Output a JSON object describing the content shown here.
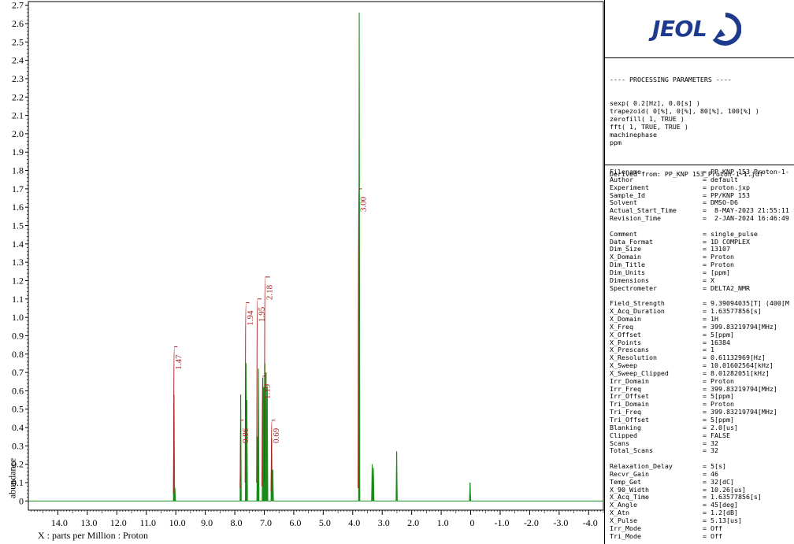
{
  "chart_data": {
    "type": "line",
    "title": "",
    "xlabel": "X : parts per Million : Proton",
    "ylabel": "abundance",
    "xlim": [
      15.0,
      -4.5
    ],
    "ylim": [
      -0.05,
      2.72
    ],
    "x_reversed": true,
    "x_ticks": [
      "14.0",
      "13.0",
      "12.0",
      "11.0",
      "10.0",
      "9.0",
      "8.0",
      "7.0",
      "6.0",
      "5.0",
      "4.0",
      "3.0",
      "2.0",
      "1.0",
      "0",
      "-1.0",
      "-2.0",
      "-3.0",
      "-4.0"
    ],
    "x_tick_values": [
      14,
      13,
      12,
      11,
      10,
      9,
      8,
      7,
      6,
      5,
      4,
      3,
      2,
      1,
      0,
      -1,
      -2,
      -3,
      -4
    ],
    "y_ticks": [
      "0",
      "0.1",
      "0.2",
      "0.3",
      "0.4",
      "0.5",
      "0.6",
      "0.7",
      "0.8",
      "0.9",
      "1.0",
      "1.1",
      "1.2",
      "1.3",
      "1.4",
      "1.5",
      "1.6",
      "1.7",
      "1.8",
      "1.9",
      "2.0",
      "2.1",
      "2.2",
      "2.3",
      "2.4",
      "2.5",
      "2.6",
      "2.7"
    ],
    "y_tick_values": [
      0,
      0.1,
      0.2,
      0.3,
      0.4,
      0.5,
      0.6,
      0.7,
      0.8,
      0.9,
      1.0,
      1.1,
      1.2,
      1.3,
      1.4,
      1.5,
      1.6,
      1.7,
      1.8,
      1.9,
      2.0,
      2.1,
      2.2,
      2.3,
      2.4,
      2.5,
      2.6,
      2.7
    ],
    "spectrum_color": "#1a8a1a",
    "integral_color": "#a82020",
    "peaks": [
      {
        "ppm": 10.06,
        "height": 0.58
      },
      {
        "ppm": 10.03,
        "height": 0.07
      },
      {
        "ppm": 7.8,
        "height": 0.58
      },
      {
        "ppm": 7.62,
        "height": 0.75
      },
      {
        "ppm": 7.59,
        "height": 0.55
      },
      {
        "ppm": 7.23,
        "height": 0.35
      },
      {
        "ppm": 7.2,
        "height": 0.72
      },
      {
        "ppm": 7.05,
        "height": 0.67
      },
      {
        "ppm": 7.02,
        "height": 0.62
      },
      {
        "ppm": 6.98,
        "height": 0.75
      },
      {
        "ppm": 6.94,
        "height": 0.7
      },
      {
        "ppm": 6.9,
        "height": 0.62
      },
      {
        "ppm": 6.75,
        "height": 0.34
      },
      {
        "ppm": 6.71,
        "height": 0.17
      },
      {
        "ppm": 3.78,
        "height": 2.66
      },
      {
        "ppm": 3.34,
        "height": 0.2
      },
      {
        "ppm": 3.3,
        "height": 0.18
      },
      {
        "ppm": 2.51,
        "height": 0.27
      },
      {
        "ppm": 0.02,
        "height": 0.1
      }
    ],
    "integrals": [
      {
        "label": "1.47",
        "start": 10.08,
        "end": 10.0,
        "top": 0.84,
        "bottom": 0.04
      },
      {
        "label": "0.86",
        "start": 7.82,
        "end": 7.76,
        "top": 0.44,
        "bottom": 0.07
      },
      {
        "label": "1.94",
        "start": 7.65,
        "end": 7.56,
        "top": 1.08,
        "bottom": 0.1
      },
      {
        "label": "1.95",
        "start": 7.26,
        "end": 7.15,
        "top": 1.1,
        "bottom": 0.1
      },
      {
        "label": "1.19",
        "start": 7.08,
        "end": 7.0,
        "top": 0.68,
        "bottom": 0.08
      },
      {
        "label": "2.18",
        "start": 7.0,
        "end": 6.86,
        "top": 1.22,
        "bottom": 0.1
      },
      {
        "label": "0.69",
        "start": 6.77,
        "end": 6.68,
        "top": 0.44,
        "bottom": 0.05
      },
      {
        "label": "3.00",
        "start": 3.82,
        "end": 3.74,
        "top": 1.7,
        "bottom": 0.07
      }
    ]
  },
  "logo": {
    "text": "JEOL"
  },
  "processing": {
    "header": "---- PROCESSING PARAMETERS ----",
    "lines": [
      "sexp( 0.2[Hz], 0.0[s] )",
      "trapezoid( 0[%], 0[%], 80[%], 100[%] )",
      "zerofill( 1, TRUE )",
      "fft( 1, TRUE, TRUE )",
      "machinephase",
      "ppm"
    ],
    "derived": "Derived from: PP_KNP 153_Proton-1-1.jdf"
  },
  "parameters": {
    "groups": [
      [
        {
          "key": "Filename",
          "value": "= PP_KNP 153_Proton-1-"
        },
        {
          "key": "Author",
          "value": "= default"
        },
        {
          "key": "Experiment",
          "value": "= proton.jxp"
        },
        {
          "key": "Sample_Id",
          "value": "= PP/KNP 153"
        },
        {
          "key": "Solvent",
          "value": "= DMSO-D6"
        },
        {
          "key": "Actual_Start_Time",
          "value": "=  8-MAY-2023 21:55:11"
        },
        {
          "key": "Revision_Time",
          "value": "=  2-JAN-2024 16:46:49"
        }
      ],
      [
        {
          "key": "Comment",
          "value": "= single_pulse"
        },
        {
          "key": "Data_Format",
          "value": "= 1D COMPLEX"
        },
        {
          "key": "Dim_Size",
          "value": "= 13107"
        },
        {
          "key": "X_Domain",
          "value": "= Proton"
        },
        {
          "key": "Dim_Title",
          "value": "= Proton"
        },
        {
          "key": "Dim_Units",
          "value": "= [ppm]"
        },
        {
          "key": "Dimensions",
          "value": "= X"
        },
        {
          "key": "Spectrometer",
          "value": "= DELTA2_NMR"
        }
      ],
      [
        {
          "key": "Field_Strength",
          "value": "= 9.39094035[T] (400[M"
        },
        {
          "key": "X_Acq_Duration",
          "value": "= 1.63577856[s]"
        },
        {
          "key": "X_Domain",
          "value": "= 1H"
        },
        {
          "key": "X_Freq",
          "value": "= 399.83219794[MHz]"
        },
        {
          "key": "X_Offset",
          "value": "= 5[ppm]"
        },
        {
          "key": "X_Points",
          "value": "= 16384"
        },
        {
          "key": "X_Prescans",
          "value": "= 1"
        },
        {
          "key": "X_Resolution",
          "value": "= 0.61132969[Hz]"
        },
        {
          "key": "X_Sweep",
          "value": "= 10.01602564[kHz]"
        },
        {
          "key": "X_Sweep_Clipped",
          "value": "= 8.01282051[kHz]"
        },
        {
          "key": "Irr_Domain",
          "value": "= Proton"
        },
        {
          "key": "Irr_Freq",
          "value": "= 399.83219794[MHz]"
        },
        {
          "key": "Irr_Offset",
          "value": "= 5[ppm]"
        },
        {
          "key": "Tri_Domain",
          "value": "= Proton"
        },
        {
          "key": "Tri_Freq",
          "value": "= 399.83219794[MHz]"
        },
        {
          "key": "Tri_Offset",
          "value": "= 5[ppm]"
        },
        {
          "key": "Blanking",
          "value": "= 2.0[us]"
        },
        {
          "key": "Clipped",
          "value": "= FALSE"
        },
        {
          "key": "Scans",
          "value": "= 32"
        },
        {
          "key": "Total_Scans",
          "value": "= 32"
        }
      ],
      [
        {
          "key": "Relaxation_Delay",
          "value": "= 5[s]"
        },
        {
          "key": "Recvr_Gain",
          "value": "= 46"
        },
        {
          "key": "Temp_Get",
          "value": "= 32[dC]"
        },
        {
          "key": "X_90_Width",
          "value": "= 10.26[us]"
        },
        {
          "key": "X_Acq_Time",
          "value": "= 1.63577856[s]"
        },
        {
          "key": "X_Angle",
          "value": "= 45[deg]"
        },
        {
          "key": "X_Atn",
          "value": "= 1.2[dB]"
        },
        {
          "key": "X_Pulse",
          "value": "= 5.13[us]"
        },
        {
          "key": "Irr_Mode",
          "value": "= Off"
        },
        {
          "key": "Tri_Mode",
          "value": "= Off"
        }
      ]
    ]
  }
}
